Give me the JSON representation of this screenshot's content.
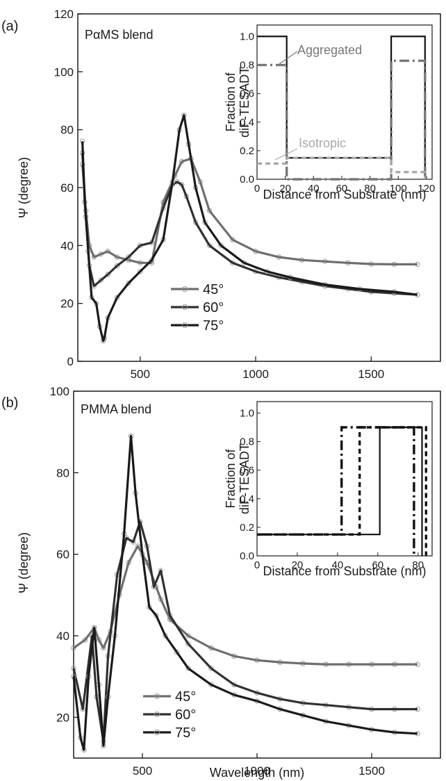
{
  "chart_data": [
    {
      "panel": "(a)",
      "type": "line",
      "title": "PαMS blend",
      "ylabel": "Ψ (degree)",
      "xlabel": "",
      "xlim": [
        230,
        1800
      ],
      "ylim": [
        0,
        120
      ],
      "xticks": [
        500,
        1000,
        1500
      ],
      "yticks": [
        0,
        20,
        40,
        60,
        80,
        100,
        120
      ],
      "legend": [
        "45°",
        "60°",
        "75°"
      ],
      "legend_position": "lower-center",
      "series": [
        {
          "name": "45°",
          "color": "#6e6e6e",
          "x": [
            250,
            265,
            280,
            300,
            330,
            360,
            400,
            450,
            500,
            550,
            600,
            650,
            680,
            720,
            760,
            800,
            900,
            1000,
            1100,
            1200,
            1300,
            1400,
            1500,
            1600,
            1700
          ],
          "y": [
            68,
            52,
            40,
            36,
            37,
            38,
            36,
            35,
            34,
            34,
            55,
            64,
            69,
            70,
            62,
            52,
            42,
            38,
            36,
            35,
            34.5,
            34,
            33.6,
            33.5,
            33.5
          ]
        },
        {
          "name": "60°",
          "color": "#303030",
          "x": [
            250,
            265,
            280,
            300,
            330,
            360,
            400,
            450,
            500,
            550,
            600,
            640,
            660,
            680,
            700,
            740,
            800,
            900,
            1000,
            1100,
            1200,
            1300,
            1400,
            1500,
            1600,
            1700
          ],
          "y": [
            72,
            50,
            33,
            26,
            28,
            30,
            33,
            36,
            40,
            41,
            53,
            61,
            62,
            61,
            57,
            48,
            40,
            34,
            31,
            29,
            27.5,
            26,
            25,
            24,
            23.5,
            23
          ]
        },
        {
          "name": "75°",
          "color": "#1a1a1a",
          "x": [
            250,
            260,
            275,
            290,
            310,
            325,
            340,
            345,
            360,
            400,
            450,
            500,
            550,
            600,
            640,
            670,
            690,
            710,
            740,
            780,
            850,
            950,
            1050,
            1150,
            1300,
            1450,
            1600,
            1700
          ],
          "y": [
            76,
            55,
            38,
            22,
            20,
            12,
            7,
            8,
            15,
            22,
            27,
            31,
            35,
            42,
            62,
            80,
            85,
            75,
            60,
            48,
            40,
            34,
            31,
            29,
            26.5,
            25,
            24,
            23
          ]
        }
      ],
      "inset": {
        "type": "step",
        "ylabel": "Fraction of diF-TESADT",
        "xlabel": "Distance from Substrate (nm)",
        "xlim": [
          0,
          124
        ],
        "ylim": [
          0,
          1.08
        ],
        "xticks": [
          0,
          20,
          40,
          60,
          80,
          100,
          120
        ],
        "yticks": [
          0.0,
          0.2,
          0.4,
          0.6,
          0.8,
          1.0
        ],
        "annotations": [
          "Aggregated",
          "Isotropic"
        ],
        "series": [
          {
            "style": "solid",
            "color": "#111111",
            "x": [
              0,
              21,
              21,
              95,
              95,
              119,
              119
            ],
            "y": [
              1.0,
              1.0,
              0.15,
              0.15,
              1.0,
              1.0,
              0.0
            ]
          },
          {
            "style": "dash-dot",
            "color": "#777777",
            "x": [
              0,
              21,
              21,
              95,
              95,
              119,
              119
            ],
            "y": [
              0.8,
              0.8,
              0.0,
              0.0,
              0.83,
              0.83,
              0.0
            ]
          },
          {
            "style": "dashed",
            "color": "#a8a8a8",
            "x": [
              0,
              21,
              21,
              95,
              95,
              119,
              119
            ],
            "y": [
              0.11,
              0.11,
              0.15,
              0.15,
              0.05,
              0.05,
              0.0
            ]
          }
        ]
      }
    },
    {
      "panel": "(b)",
      "type": "line",
      "title": "PMMA blend",
      "ylabel": "Ψ (degree)",
      "xlabel": "Wavelength (nm)",
      "xlim": [
        200,
        1800
      ],
      "ylim": [
        10,
        100
      ],
      "xticks": [
        500,
        1000,
        1500
      ],
      "yticks": [
        20,
        40,
        60,
        80,
        100
      ],
      "legend": [
        "45°",
        "60°",
        "75°"
      ],
      "legend_position": "lower-center",
      "series": [
        {
          "name": "45°",
          "color": "#6e6e6e",
          "x": [
            200,
            250,
            290,
            310,
            330,
            360,
            400,
            440,
            480,
            520,
            560,
            580,
            620,
            700,
            800,
            900,
            1000,
            1100,
            1200,
            1300,
            1400,
            1500,
            1600,
            1700
          ],
          "y": [
            37,
            39,
            42,
            39,
            37,
            41,
            50,
            58,
            62,
            58,
            52,
            49,
            44,
            40,
            37,
            35,
            34,
            33.5,
            33.2,
            33,
            33,
            33,
            33,
            33
          ]
        },
        {
          "name": "60°",
          "color": "#303030",
          "x": [
            200,
            240,
            280,
            300,
            330,
            350,
            390,
            430,
            460,
            490,
            520,
            550,
            580,
            620,
            700,
            800,
            900,
            1000,
            1100,
            1200,
            1300,
            1400,
            1500,
            1600,
            1700
          ],
          "y": [
            32,
            22,
            40,
            25,
            14,
            35,
            55,
            64,
            63,
            68,
            62,
            52,
            56,
            45,
            38,
            32,
            28,
            26,
            24.5,
            23.5,
            23,
            22.5,
            22,
            22,
            22
          ]
        },
        {
          "name": "75°",
          "color": "#1a1a1a",
          "x": [
            200,
            230,
            245,
            265,
            290,
            310,
            330,
            350,
            380,
            420,
            450,
            470,
            500,
            530,
            560,
            600,
            650,
            700,
            800,
            900,
            1000,
            1100,
            1200,
            1300,
            1400,
            1500,
            1600,
            1700
          ],
          "y": [
            30,
            15,
            12,
            30,
            42,
            28,
            13,
            25,
            40,
            65,
            89,
            75,
            60,
            47,
            45,
            40,
            36,
            32,
            28,
            25.5,
            24,
            22,
            20.5,
            19,
            18,
            17,
            16.3,
            16
          ]
        }
      ],
      "inset": {
        "type": "step",
        "ylabel": "Fraction of diF-TESADT",
        "xlabel": "Distance from Substrate (nm)",
        "xlim": [
          0,
          87
        ],
        "ylim": [
          0,
          1.08
        ],
        "xticks": [
          0,
          20,
          40,
          60,
          80
        ],
        "yticks": [
          0.0,
          0.2,
          0.4,
          0.6,
          0.8,
          1.0
        ],
        "annotations": [],
        "series": [
          {
            "style": "solid",
            "color": "#111111",
            "x": [
              0,
              61,
              61,
              82,
              82
            ],
            "y": [
              0.15,
              0.15,
              0.9,
              0.9,
              0.0
            ]
          },
          {
            "style": "dash-dot",
            "color": "#111111",
            "x": [
              0,
              42,
              42,
              78,
              78
            ],
            "y": [
              0.15,
              0.15,
              0.9,
              0.9,
              0.0
            ]
          },
          {
            "style": "dashed",
            "color": "#111111",
            "x": [
              0,
              51,
              51,
              84,
              84
            ],
            "y": [
              0.15,
              0.15,
              0.9,
              0.9,
              0.0
            ]
          }
        ]
      }
    }
  ]
}
